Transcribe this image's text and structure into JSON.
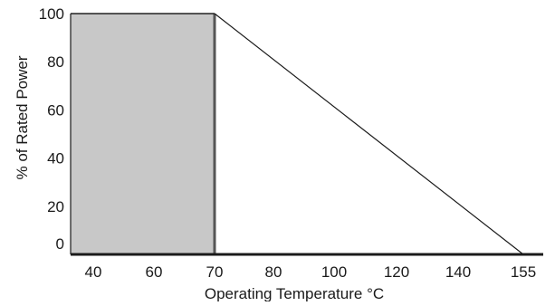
{
  "chart_data": {
    "type": "area",
    "title": "",
    "xlabel": "Operating Temperature °C",
    "ylabel": "% of Rated Power",
    "x_ticks": [
      "40",
      "60",
      "70",
      "80",
      "100",
      "120",
      "140",
      "155"
    ],
    "x_tick_values": [
      40,
      60,
      70,
      80,
      100,
      120,
      140,
      155
    ],
    "y_ticks": [
      "0",
      "20",
      "40",
      "60",
      "80",
      "100"
    ],
    "y_tick_values": [
      0,
      20,
      40,
      60,
      80,
      100
    ],
    "xlim": [
      35,
      157
    ],
    "ylim": [
      0,
      100
    ],
    "grid": false,
    "legend": "none",
    "series": [
      {
        "points": [
          {
            "x": 35,
            "y": 100
          },
          {
            "x": 70,
            "y": 100
          },
          {
            "x": 155,
            "y": 0
          }
        ]
      }
    ],
    "shaded_region": {
      "x_from": 35,
      "x_to": 70,
      "y_from": 0,
      "y_to": 100
    },
    "colors": {
      "shade": "#c8c8c8",
      "line": "#1a1a1a",
      "axis": "#1a1a1a"
    }
  }
}
